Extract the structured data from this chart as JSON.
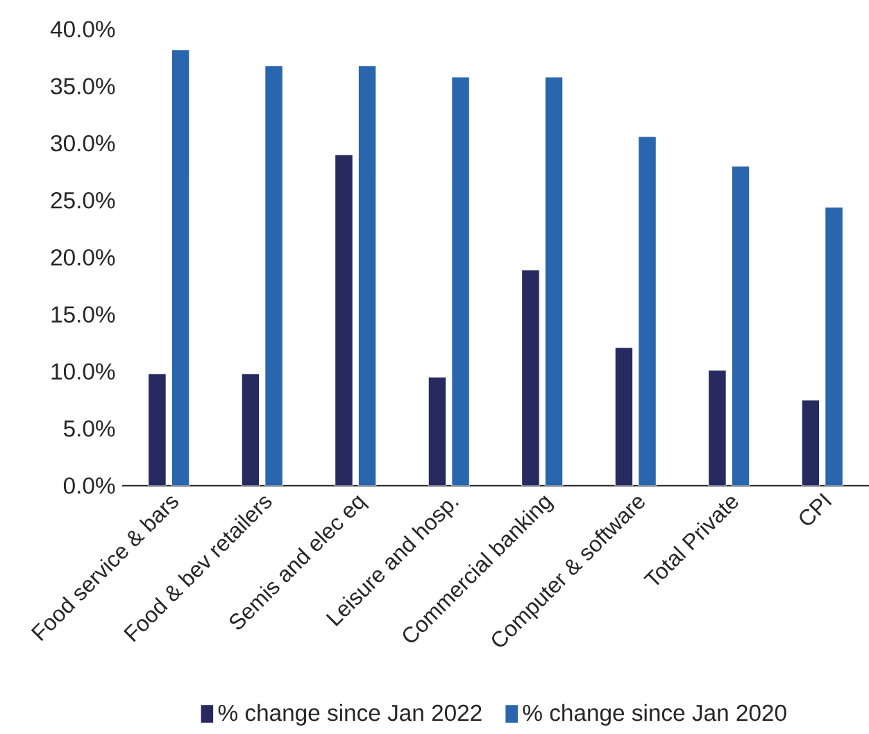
{
  "chart_data": {
    "type": "bar",
    "categories": [
      "Food service & bars",
      "Food & bev retailers",
      "Semis and elec eq",
      "Leisure and hosp.",
      "Commercial banking",
      "Computer & software",
      "Total Private",
      "CPI"
    ],
    "series": [
      {
        "name": "% change since Jan 2022",
        "color": "#262a5e",
        "values": [
          9.8,
          9.8,
          29.0,
          9.5,
          18.9,
          12.1,
          10.1,
          7.5
        ]
      },
      {
        "name": "% change since Jan 2020",
        "color": "#2966ae",
        "values": [
          38.2,
          36.8,
          36.8,
          35.8,
          35.8,
          30.6,
          28.0,
          24.4
        ]
      }
    ],
    "ylim": [
      0,
      40
    ],
    "yticks": [
      {
        "value": 0,
        "label": "0.0%"
      },
      {
        "value": 5,
        "label": "5.0%"
      },
      {
        "value": 10,
        "label": "10.0%"
      },
      {
        "value": 15,
        "label": "15.0%"
      },
      {
        "value": 20,
        "label": "20.0%"
      },
      {
        "value": 25,
        "label": "25.0%"
      },
      {
        "value": 30,
        "label": "30.0%"
      },
      {
        "value": 35,
        "label": "35.0%"
      },
      {
        "value": 40,
        "label": "40.0%"
      }
    ],
    "grid": false,
    "legend": "bottom"
  }
}
